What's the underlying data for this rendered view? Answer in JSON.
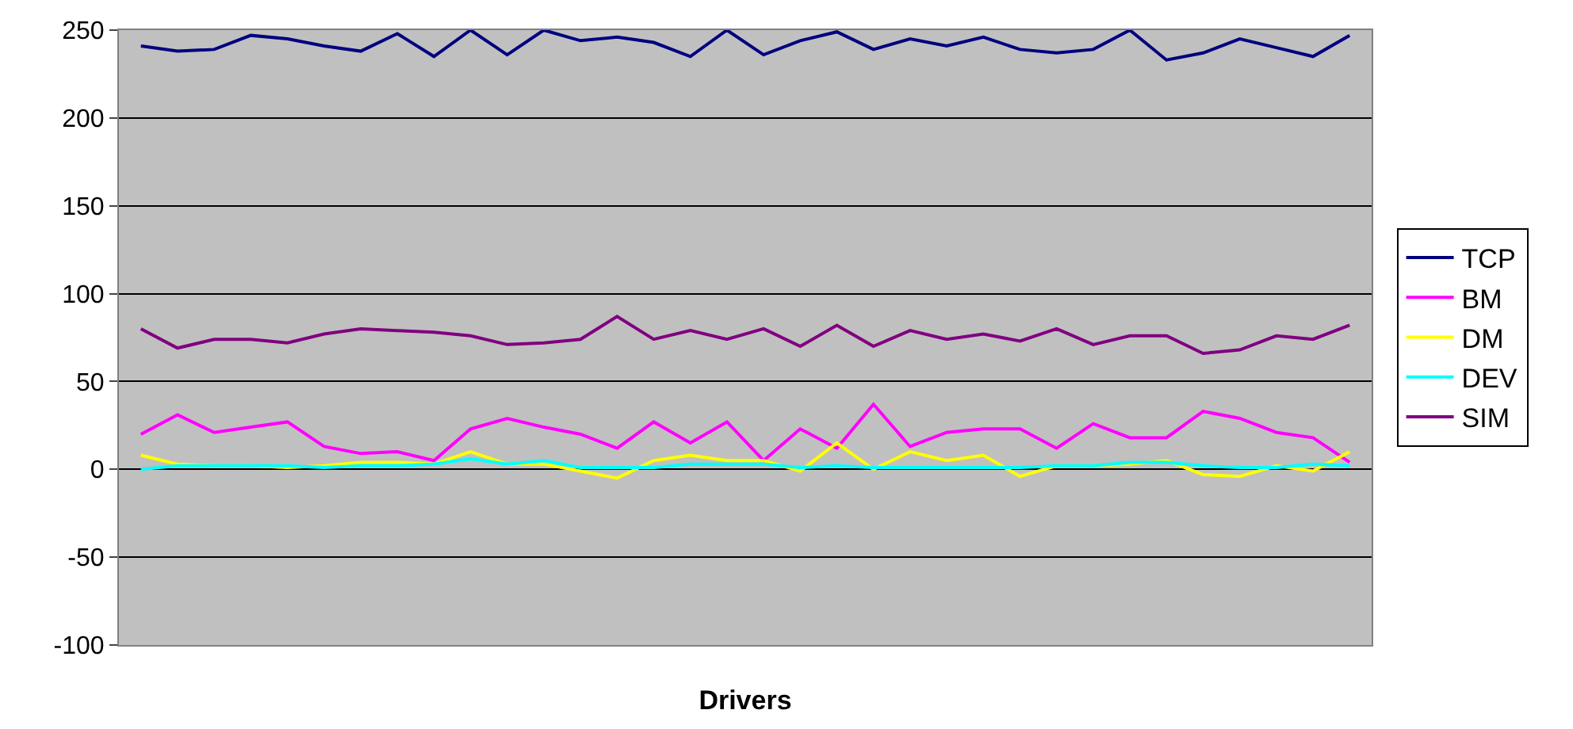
{
  "chart_data": {
    "type": "line",
    "xlabel": "Drivers",
    "categories": [
      null,
      null,
      null,
      null,
      null,
      null,
      null,
      null,
      null,
      null,
      null,
      null,
      null,
      null,
      null,
      null,
      null,
      null,
      null,
      null,
      null,
      null,
      null,
      null,
      null,
      null,
      null,
      null,
      null,
      null,
      null,
      null,
      null,
      null
    ],
    "series": [
      {
        "name": "TCP",
        "color": "#000080",
        "values": [
          241,
          238,
          239,
          247,
          245,
          241,
          238,
          248,
          235,
          250,
          236,
          250,
          244,
          246,
          243,
          235,
          250,
          236,
          244,
          249,
          239,
          245,
          241,
          246,
          239,
          237,
          239,
          250,
          233,
          237,
          245,
          240,
          235,
          247
        ]
      },
      {
        "name": "BM",
        "color": "#ff00ff",
        "values": [
          20,
          31,
          21,
          24,
          27,
          13,
          9,
          10,
          5,
          23,
          29,
          24,
          20,
          12,
          27,
          15,
          27,
          5,
          23,
          12,
          37,
          13,
          21,
          23,
          23,
          12,
          26,
          18,
          18,
          33,
          29,
          21,
          18,
          4
        ]
      },
      {
        "name": "DM",
        "color": "#ffff00",
        "values": [
          8,
          3,
          2,
          2,
          1,
          2,
          4,
          4,
          3,
          10,
          3,
          3,
          -1,
          -5,
          5,
          8,
          5,
          5,
          -1,
          15,
          0,
          10,
          5,
          8,
          -4,
          2,
          2,
          3,
          5,
          -3,
          -4,
          2,
          -1,
          10
        ]
      },
      {
        "name": "DEV",
        "color": "#00ffff",
        "values": [
          0,
          2,
          2,
          2,
          2,
          1,
          2,
          2,
          3,
          6,
          3,
          5,
          1,
          1,
          1,
          3,
          3,
          3,
          1,
          2,
          1,
          1,
          1,
          1,
          1,
          2,
          2,
          4,
          4,
          2,
          1,
          1,
          3,
          2
        ]
      },
      {
        "name": "SIM",
        "color": "#800080",
        "values": [
          80,
          69,
          74,
          74,
          72,
          77,
          80,
          79,
          78,
          76,
          71,
          72,
          74,
          87,
          74,
          79,
          74,
          80,
          70,
          82,
          70,
          79,
          74,
          77,
          73,
          80,
          71,
          76,
          76,
          66,
          68,
          76,
          74,
          82
        ]
      }
    ],
    "ylim": [
      -100,
      250
    ],
    "yticks": [
      -100,
      -50,
      0,
      50,
      100,
      150,
      200,
      250
    ],
    "grid": "y",
    "legend": "right",
    "marker": "none",
    "line_style": "solid"
  }
}
